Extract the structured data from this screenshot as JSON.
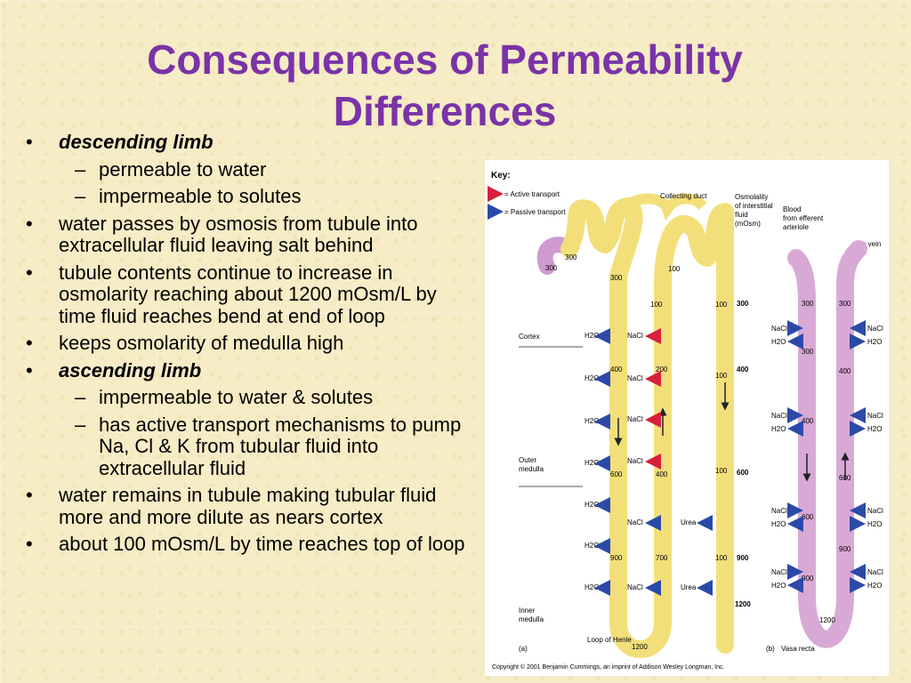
{
  "slide": {
    "title": "Consequences of Permeability Differences"
  },
  "bullets": [
    {
      "level": 1,
      "text": "descending limb",
      "style": "bold-italic"
    },
    {
      "level": 2,
      "text": "permeable to water"
    },
    {
      "level": 2,
      "text": "impermeable to solutes"
    },
    {
      "level": 1,
      "text": "water passes by osmosis from tubule into extracellular fluid leaving salt behind"
    },
    {
      "level": 1,
      "text": "tubule contents continue to increase in osmolarity reaching about 1200 mOsm/L by time fluid reaches bend at end of  loop"
    },
    {
      "level": 1,
      "text": "keeps osmolarity of medulla high"
    },
    {
      "level": 1,
      "text": "ascending limb",
      "style": "bold-italic"
    },
    {
      "level": 2,
      "text": "impermeable to water & solutes"
    },
    {
      "level": 2,
      "text": "has active transport mechanisms to pump Na, Cl & K from tubular fluid into extracellular fluid"
    },
    {
      "level": 1,
      "text": "water remains in tubule making tubular fluid more and more dilute as nears cortex"
    },
    {
      "level": 1,
      "text": "about 100 mOsm/L by time reaches top of loop"
    }
  ],
  "figure": {
    "key_title": "Key:",
    "key_active": "= Active transport",
    "key_passive": "= Passive transport",
    "collecting_duct": "Collecting duct",
    "osmolality_header": [
      "Osmolality",
      "of interstitial",
      "fluid",
      "(mOsm)"
    ],
    "blood_header": [
      "Blood",
      "from efferent",
      "arteriole"
    ],
    "to_vein": "To vein",
    "region_cortex": "Cortex",
    "region_outer": [
      "Outer",
      "medulla"
    ],
    "region_inner": [
      "Inner",
      "medulla"
    ],
    "loop_label": "Loop of Henle",
    "panel_a": "(a)",
    "panel_b": "(b)",
    "vasa_recta": "Vasa recta",
    "copyright": "Copyright © 2001 Benjamin Cummings, an imprint of Addison Wesley Longman, Inc.",
    "interstitial_values": [
      "300",
      "400",
      "600",
      "900",
      "1200"
    ],
    "tubule_values": {
      "top_300a": "300",
      "top_300b": "300",
      "descending_top": "300",
      "loop_desc_400": "400",
      "loop_desc_600": "600",
      "loop_desc_900": "900",
      "loop_bottom": "1200",
      "asc_100": "100",
      "asc_200": "200",
      "asc_400": "400",
      "asc_700": "700",
      "dct_100": "100",
      "cd_100a": "100",
      "cd_100b": "100",
      "cd_100c": "100",
      "cd_100d": "100"
    },
    "vasa_values": {
      "left_300": "300",
      "right_300": "300",
      "left_400": "400",
      "right_400": "400",
      "left_600": "600",
      "right_600": "600",
      "left_900": "900",
      "right_900": "900",
      "bottom": "1200"
    },
    "labels": {
      "h2o": "H2O",
      "nacl": "NaCl",
      "urea": "Urea"
    },
    "colors": {
      "tubule": "#f3df7a",
      "tubule_edge": "#d9c35a",
      "pct": "#cf9bcf",
      "vasa": "#d9a9d6",
      "active_arrow": "#d8203a",
      "passive_arrow": "#2b4aa8"
    }
  }
}
